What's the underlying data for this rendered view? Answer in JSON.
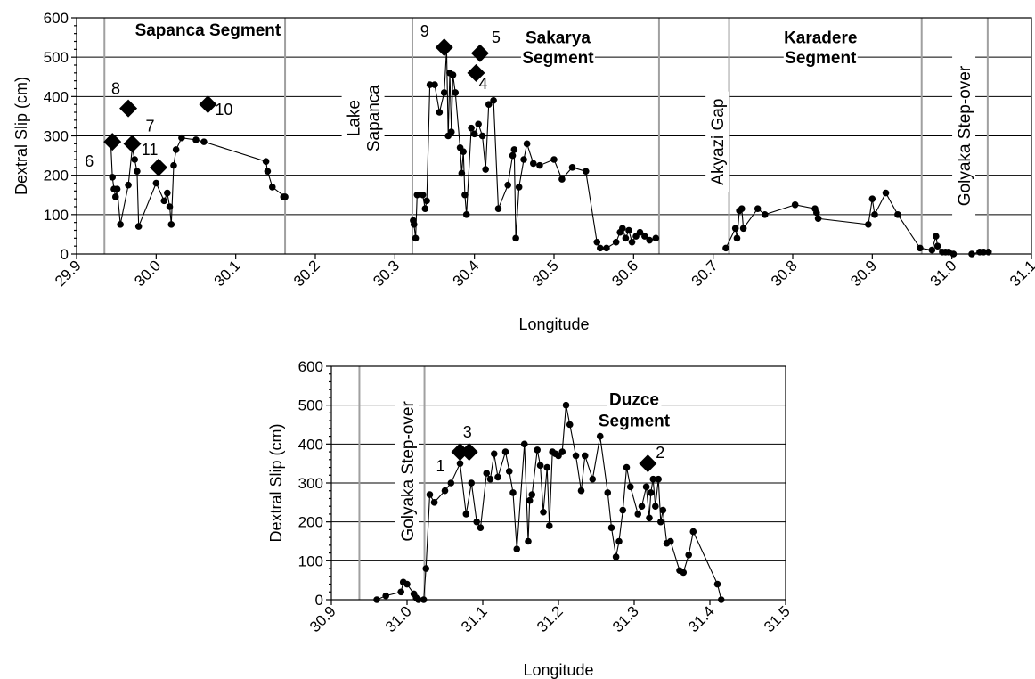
{
  "chart_data": [
    {
      "type": "scatter",
      "xlabel": "Longitude",
      "ylabel": "Dextral Slip (cm)",
      "xlim": [
        29.9,
        31.1
      ],
      "ylim": [
        0,
        600
      ],
      "x_ticks": [
        "29.9",
        "30.0",
        "30.1",
        "30.2",
        "30.3",
        "30.4",
        "30.5",
        "30.6",
        "30.7",
        "30.8",
        "30.9",
        "31.0",
        "31.1"
      ],
      "y_ticks": [
        "0",
        "100",
        "200",
        "300",
        "400",
        "500",
        "600"
      ],
      "grid": "horizontal",
      "segment_boundaries": [
        29.935,
        30.162,
        30.322,
        30.632,
        30.72,
        30.962,
        31.045
      ],
      "segment_labels": [
        {
          "text": "Sapanca Segment",
          "x": 30.065,
          "y": 555
        },
        {
          "text": "Sakarya",
          "x": 30.505,
          "y": 535
        },
        {
          "text": "Segment",
          "x": 30.505,
          "y": 485
        },
        {
          "text": "Karadere",
          "x": 30.835,
          "y": 535
        },
        {
          "text": "Segment",
          "x": 30.835,
          "y": 485
        }
      ],
      "vertical_annotations": [
        {
          "lines": [
            "Lake",
            "Sapanca"
          ],
          "x": 30.26,
          "y": 345
        },
        {
          "lines": [
            "Akyazi Gap"
          ],
          "x": 30.705,
          "y": 285
        },
        {
          "lines": [
            "Golyaka Step-over"
          ],
          "x": 31.015,
          "y": 300
        }
      ],
      "series": [
        {
          "name": "",
          "marker": "circle",
          "x": [
            29.943,
            29.945,
            29.947,
            29.949,
            29.951,
            29.955,
            29.965,
            29.97,
            29.973,
            29.976,
            29.978,
            30.0,
            30.01,
            30.014,
            30.017,
            30.019,
            30.022,
            30.025,
            30.032,
            30.05,
            30.06,
            30.138,
            30.14,
            30.146,
            30.162,
            30.16
          ],
          "y": [
            280,
            195,
            165,
            145,
            165,
            75,
            175,
            270,
            240,
            210,
            70,
            180,
            135,
            155,
            120,
            75,
            225,
            265,
            295,
            290,
            285,
            235,
            210,
            170,
            145,
            145
          ]
        },
        {
          "name": "",
          "marker": "circle",
          "x": [
            30.323,
            30.324,
            30.326,
            30.328,
            30.335,
            30.338,
            30.34,
            30.344,
            30.35,
            30.356,
            30.362,
            30.365,
            30.367,
            30.369,
            30.371,
            30.373,
            30.376,
            30.382,
            30.384,
            30.386,
            30.388,
            30.39,
            30.396,
            30.4,
            30.405,
            30.41,
            30.414,
            30.418,
            30.424,
            30.43,
            30.442,
            30.448,
            30.45,
            30.452,
            30.456,
            30.462,
            30.466,
            30.474,
            30.482,
            30.5,
            30.51,
            30.523,
            30.54,
            30.554,
            30.558,
            30.566,
            30.578,
            30.583,
            30.586,
            30.59,
            30.594,
            30.598,
            30.603,
            30.608,
            30.614,
            30.62,
            30.628
          ],
          "y": [
            85,
            75,
            40,
            150,
            150,
            115,
            135,
            430,
            430,
            360,
            410,
            520,
            300,
            460,
            310,
            455,
            410,
            270,
            205,
            260,
            150,
            100,
            320,
            305,
            330,
            300,
            215,
            380,
            390,
            115,
            175,
            250,
            265,
            40,
            170,
            240,
            280,
            230,
            225,
            240,
            190,
            220,
            210,
            30,
            15,
            15,
            30,
            55,
            65,
            40,
            60,
            30,
            45,
            55,
            45,
            35,
            40
          ]
        },
        {
          "name": "",
          "marker": "circle",
          "x": [
            30.716,
            30.728,
            30.73,
            30.733,
            30.736,
            30.738,
            30.756,
            30.765,
            30.803,
            30.828,
            30.83,
            30.832,
            30.895,
            30.9,
            30.903,
            30.917,
            30.932,
            30.96,
            30.975,
            30.98,
            30.982,
            30.988,
            30.992,
            30.996,
            31.002,
            31.025,
            31.035,
            31.04,
            31.046
          ],
          "y": [
            15,
            65,
            40,
            110,
            115,
            65,
            115,
            100,
            125,
            115,
            105,
            90,
            75,
            140,
            100,
            155,
            100,
            15,
            10,
            45,
            20,
            5,
            5,
            5,
            0,
            0,
            5,
            5,
            5
          ]
        },
        {
          "name": "",
          "marker": "diamond",
          "x": [
            29.945,
            29.965,
            29.97,
            30.003,
            30.065,
            30.362,
            30.402,
            30.407
          ],
          "y": [
            285,
            370,
            280,
            220,
            380,
            525,
            460,
            510
          ],
          "labels": [
            "6",
            "8",
            "7",
            "11",
            "10",
            "9",
            "4",
            "5"
          ]
        }
      ]
    },
    {
      "type": "scatter",
      "xlabel": "Longitude",
      "ylabel": "Dextral Slip (cm)",
      "xlim": [
        30.9,
        31.5
      ],
      "ylim": [
        0,
        600
      ],
      "x_ticks": [
        "30.9",
        "31.0",
        "31.1",
        "31.2",
        "31.3",
        "31.4",
        "31.5"
      ],
      "y_ticks": [
        "0",
        "100",
        "200",
        "300",
        "400",
        "500",
        "600"
      ],
      "grid": "horizontal",
      "segment_boundaries": [
        30.937,
        31.023
      ],
      "segment_labels": [
        {
          "text": "Duzce",
          "x": 31.3,
          "y": 500
        },
        {
          "text": "Segment",
          "x": 31.3,
          "y": 445
        }
      ],
      "vertical_annotations": [
        {
          "lines": [
            "Golyaka Step-over"
          ],
          "x": 31.0,
          "y": 330
        }
      ],
      "series": [
        {
          "name": "",
          "marker": "circle",
          "x": [
            30.96,
            30.972,
            30.992,
            30.995,
            31.0,
            31.009,
            31.012,
            31.015,
            31.022,
            31.025,
            31.03,
            31.036,
            31.05,
            31.058,
            31.07,
            31.078,
            31.085,
            31.092,
            31.097,
            31.105,
            31.11,
            31.115,
            31.12,
            31.13,
            31.135,
            31.14,
            31.145,
            31.155,
            31.16,
            31.162,
            31.165,
            31.172,
            31.176,
            31.18,
            31.185,
            31.188,
            31.192,
            31.196,
            31.2,
            31.205,
            31.21,
            31.215,
            31.223,
            31.23,
            31.235,
            31.245,
            31.255,
            31.265,
            31.27,
            31.276,
            31.28,
            31.285,
            31.29,
            31.295,
            31.305,
            31.31,
            31.316,
            31.32,
            31.322,
            31.325,
            31.328,
            31.332,
            31.335,
            31.338,
            31.343,
            31.348,
            31.36,
            31.365,
            31.372,
            31.378,
            31.41,
            31.415
          ],
          "y": [
            0,
            10,
            20,
            45,
            40,
            15,
            5,
            0,
            0,
            80,
            270,
            250,
            280,
            300,
            350,
            220,
            300,
            200,
            185,
            325,
            310,
            375,
            315,
            380,
            330,
            275,
            130,
            400,
            150,
            255,
            270,
            385,
            345,
            225,
            340,
            190,
            380,
            375,
            370,
            380,
            500,
            450,
            370,
            280,
            370,
            310,
            420,
            275,
            185,
            110,
            150,
            230,
            340,
            290,
            220,
            240,
            290,
            210,
            275,
            310,
            240,
            310,
            200,
            230,
            145,
            150,
            75,
            70,
            115,
            175,
            40,
            0
          ]
        },
        {
          "name": "",
          "marker": "diamond",
          "x": [
            31.07,
            31.082,
            31.318
          ],
          "y": [
            380,
            380,
            350
          ],
          "labels": [
            "1",
            "3",
            "2"
          ]
        }
      ]
    }
  ]
}
